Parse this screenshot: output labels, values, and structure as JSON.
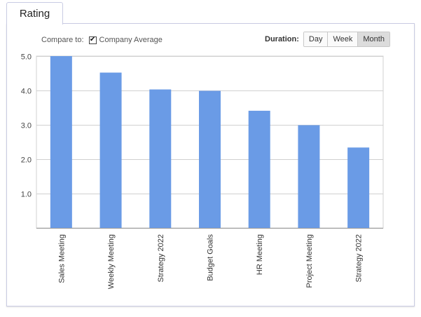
{
  "tab": {
    "label": "Rating"
  },
  "controls": {
    "compare_label": "Compare to:",
    "company_average_label": "Company Average",
    "company_average_checked": true,
    "check_glyph": "✔",
    "duration_label": "Duration:",
    "duration_options": [
      "Day",
      "Week",
      "Month"
    ],
    "duration_selected": "Month"
  },
  "colors": {
    "bar": "#6a9be6",
    "grid": "#d0d0d0",
    "axis": "#9a9a9a"
  },
  "chart_data": {
    "type": "bar",
    "categories": [
      "Sales Meeting",
      "Weekly Meeting",
      "Strategy 2022",
      "Budget Goals",
      "HR Meeting",
      "Project Meeting",
      "Strategy 2022"
    ],
    "values": [
      5.0,
      4.52,
      4.03,
      3.99,
      3.41,
      2.99,
      2.34
    ],
    "title": "",
    "xlabel": "",
    "ylabel": "",
    "ylim": [
      0,
      5
    ],
    "yticks": [
      "5.0",
      "4.0",
      "3.0",
      "2.0",
      "1.0"
    ],
    "ytick_values": [
      5,
      4,
      3,
      2,
      1
    ],
    "grid": true,
    "legend": "none"
  }
}
